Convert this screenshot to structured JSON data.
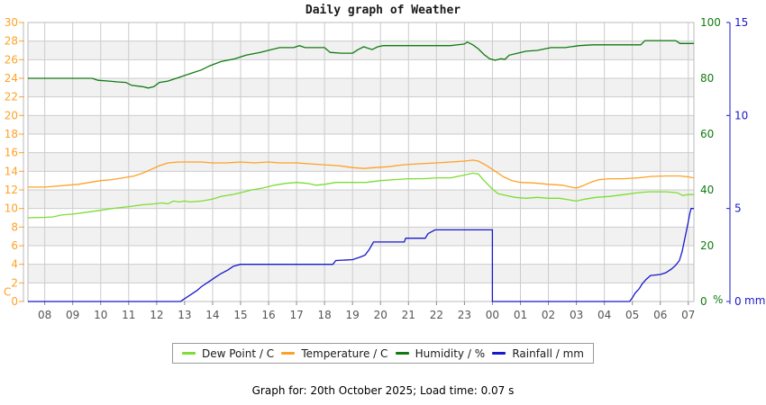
{
  "page": {
    "title": "Daily graph of Weather",
    "footer": "Graph for: 20th October 2025; Load time: 0.07 s"
  },
  "chart_data": {
    "type": "line",
    "title": "Daily graph of Weather",
    "x_axis": {
      "tick_labels": [
        "08",
        "09",
        "10",
        "11",
        "12",
        "13",
        "14",
        "15",
        "16",
        "17",
        "18",
        "19",
        "20",
        "21",
        "22",
        "23",
        "00",
        "01",
        "02",
        "03",
        "04",
        "05",
        "06",
        "07"
      ],
      "start_hour": 8,
      "range": [
        7.4,
        31.2
      ],
      "grid": true,
      "tick_label_color": "#555555"
    },
    "y_axis_left": {
      "label": "C",
      "min": 0,
      "max": 30,
      "step": 2,
      "color": "#FFA125"
    },
    "y_axis_right_humidity": {
      "label": "%",
      "min": 0,
      "max": 100,
      "step": 20,
      "color": "#117A11"
    },
    "y_axis_right_rain": {
      "label": "mm",
      "min": 0,
      "max": 15,
      "step": 5,
      "color": "#1818CC"
    },
    "grid_color": "#CCCCCC",
    "band_color": "#F1F1F1",
    "border_color": "#BBBBBB",
    "legend_position": "bottom",
    "series": [
      {
        "name": "Dew Point / C",
        "axis": "left",
        "color": "#7CDE30",
        "points": [
          [
            7.4,
            9.0
          ],
          [
            8.0,
            9.05
          ],
          [
            8.3,
            9.1
          ],
          [
            8.6,
            9.3
          ],
          [
            9.0,
            9.4
          ],
          [
            9.5,
            9.6
          ],
          [
            10.0,
            9.8
          ],
          [
            10.4,
            10.0
          ],
          [
            11.0,
            10.2
          ],
          [
            11.5,
            10.4
          ],
          [
            11.9,
            10.5
          ],
          [
            12.2,
            10.6
          ],
          [
            12.4,
            10.5
          ],
          [
            12.6,
            10.8
          ],
          [
            12.8,
            10.7
          ],
          [
            13.0,
            10.8
          ],
          [
            13.2,
            10.7
          ],
          [
            13.6,
            10.8
          ],
          [
            14.0,
            11.0
          ],
          [
            14.3,
            11.3
          ],
          [
            14.7,
            11.5
          ],
          [
            15.0,
            11.7
          ],
          [
            15.4,
            12.0
          ],
          [
            15.8,
            12.2
          ],
          [
            16.2,
            12.5
          ],
          [
            16.6,
            12.7
          ],
          [
            17.0,
            12.8
          ],
          [
            17.4,
            12.7
          ],
          [
            17.7,
            12.5
          ],
          [
            18.0,
            12.6
          ],
          [
            18.4,
            12.8
          ],
          [
            19.0,
            12.8
          ],
          [
            19.5,
            12.8
          ],
          [
            20.0,
            13.0
          ],
          [
            20.5,
            13.1
          ],
          [
            21.0,
            13.2
          ],
          [
            21.5,
            13.2
          ],
          [
            22.0,
            13.3
          ],
          [
            22.5,
            13.3
          ],
          [
            23.0,
            13.6
          ],
          [
            23.3,
            13.8
          ],
          [
            23.5,
            13.7
          ],
          [
            23.7,
            13.0
          ],
          [
            24.0,
            12.1
          ],
          [
            24.2,
            11.6
          ],
          [
            24.5,
            11.4
          ],
          [
            24.8,
            11.2
          ],
          [
            25.2,
            11.1
          ],
          [
            25.6,
            11.2
          ],
          [
            26.0,
            11.1
          ],
          [
            26.4,
            11.1
          ],
          [
            26.8,
            10.9
          ],
          [
            27.0,
            10.8
          ],
          [
            27.3,
            11.0
          ],
          [
            27.7,
            11.2
          ],
          [
            28.2,
            11.3
          ],
          [
            28.7,
            11.5
          ],
          [
            29.2,
            11.7
          ],
          [
            29.6,
            11.8
          ],
          [
            30.2,
            11.8
          ],
          [
            30.6,
            11.7
          ],
          [
            30.8,
            11.4
          ],
          [
            31.0,
            11.5
          ],
          [
            31.2,
            11.5
          ]
        ]
      },
      {
        "name": "Temperature / C",
        "axis": "left",
        "color": "#FFA125",
        "points": [
          [
            7.4,
            12.3
          ],
          [
            8.0,
            12.3
          ],
          [
            8.4,
            12.4
          ],
          [
            8.8,
            12.5
          ],
          [
            9.2,
            12.6
          ],
          [
            9.6,
            12.8
          ],
          [
            10.0,
            13.0
          ],
          [
            10.4,
            13.1
          ],
          [
            10.8,
            13.3
          ],
          [
            11.2,
            13.5
          ],
          [
            11.5,
            13.8
          ],
          [
            11.8,
            14.2
          ],
          [
            12.1,
            14.6
          ],
          [
            12.4,
            14.9
          ],
          [
            12.8,
            15.0
          ],
          [
            13.2,
            15.0
          ],
          [
            13.6,
            15.0
          ],
          [
            14.0,
            14.9
          ],
          [
            14.5,
            14.9
          ],
          [
            15.0,
            15.0
          ],
          [
            15.5,
            14.9
          ],
          [
            16.0,
            15.0
          ],
          [
            16.4,
            14.9
          ],
          [
            17.0,
            14.9
          ],
          [
            17.5,
            14.8
          ],
          [
            18.0,
            14.7
          ],
          [
            18.5,
            14.6
          ],
          [
            19.0,
            14.4
          ],
          [
            19.4,
            14.3
          ],
          [
            19.8,
            14.4
          ],
          [
            20.3,
            14.5
          ],
          [
            20.8,
            14.7
          ],
          [
            21.3,
            14.8
          ],
          [
            22.0,
            14.9
          ],
          [
            22.5,
            15.0
          ],
          [
            23.0,
            15.1
          ],
          [
            23.3,
            15.2
          ],
          [
            23.5,
            15.1
          ],
          [
            23.8,
            14.6
          ],
          [
            24.1,
            14.0
          ],
          [
            24.4,
            13.4
          ],
          [
            24.7,
            13.0
          ],
          [
            25.0,
            12.8
          ],
          [
            25.5,
            12.75
          ],
          [
            26.0,
            12.6
          ],
          [
            26.5,
            12.5
          ],
          [
            26.8,
            12.3
          ],
          [
            27.0,
            12.2
          ],
          [
            27.2,
            12.4
          ],
          [
            27.5,
            12.8
          ],
          [
            27.8,
            13.1
          ],
          [
            28.2,
            13.2
          ],
          [
            28.7,
            13.2
          ],
          [
            29.2,
            13.3
          ],
          [
            29.7,
            13.45
          ],
          [
            30.2,
            13.5
          ],
          [
            30.7,
            13.5
          ],
          [
            31.0,
            13.4
          ],
          [
            31.2,
            13.3
          ]
        ]
      },
      {
        "name": "Humidity / %",
        "axis": "humidity",
        "color": "#117A11",
        "points": [
          [
            7.4,
            80
          ],
          [
            9.0,
            80
          ],
          [
            9.7,
            80
          ],
          [
            9.9,
            79.3
          ],
          [
            10.3,
            79
          ],
          [
            10.6,
            78.7
          ],
          [
            10.9,
            78.5
          ],
          [
            11.1,
            77.5
          ],
          [
            11.5,
            77
          ],
          [
            11.7,
            76.5
          ],
          [
            11.9,
            77
          ],
          [
            12.1,
            78.5
          ],
          [
            12.4,
            79
          ],
          [
            12.7,
            80
          ],
          [
            13.0,
            81
          ],
          [
            13.3,
            82
          ],
          [
            13.6,
            83
          ],
          [
            13.9,
            84.5
          ],
          [
            14.3,
            86
          ],
          [
            14.8,
            87
          ],
          [
            15.2,
            88.3
          ],
          [
            15.7,
            89.3
          ],
          [
            16.1,
            90.3
          ],
          [
            16.4,
            91
          ],
          [
            16.9,
            91
          ],
          [
            17.1,
            91.7
          ],
          [
            17.3,
            91
          ],
          [
            18.0,
            91
          ],
          [
            18.2,
            89.3
          ],
          [
            18.6,
            89
          ],
          [
            19.0,
            89
          ],
          [
            19.2,
            90.3
          ],
          [
            19.4,
            91.3
          ],
          [
            19.7,
            90.3
          ],
          [
            19.9,
            91.3
          ],
          [
            20.1,
            91.7
          ],
          [
            20.5,
            91.7
          ],
          [
            21.0,
            91.7
          ],
          [
            21.5,
            91.7
          ],
          [
            22.0,
            91.7
          ],
          [
            22.5,
            91.7
          ],
          [
            23.0,
            92.3
          ],
          [
            23.1,
            93
          ],
          [
            23.3,
            92
          ],
          [
            23.5,
            90.5
          ],
          [
            23.7,
            88.5
          ],
          [
            23.9,
            87
          ],
          [
            24.1,
            86.5
          ],
          [
            24.3,
            87
          ],
          [
            24.45,
            86.8
          ],
          [
            24.6,
            88.3
          ],
          [
            24.9,
            89
          ],
          [
            25.2,
            89.7
          ],
          [
            25.6,
            90
          ],
          [
            26.1,
            91
          ],
          [
            26.6,
            91
          ],
          [
            27.1,
            91.7
          ],
          [
            27.6,
            92
          ],
          [
            28.2,
            92
          ],
          [
            28.8,
            92
          ],
          [
            29.3,
            92
          ],
          [
            29.45,
            93.5
          ],
          [
            30.0,
            93.5
          ],
          [
            30.55,
            93.5
          ],
          [
            30.7,
            92.5
          ],
          [
            31.0,
            92.5
          ],
          [
            31.2,
            92.5
          ]
        ]
      },
      {
        "name": "Rainfall / mm",
        "axis": "rain",
        "color": "#1818CC",
        "points": [
          [
            7.4,
            0
          ],
          [
            12.85,
            0
          ],
          [
            12.95,
            0.1
          ],
          [
            13.15,
            0.3
          ],
          [
            13.3,
            0.45
          ],
          [
            13.45,
            0.6
          ],
          [
            13.6,
            0.8
          ],
          [
            13.85,
            1.05
          ],
          [
            14.1,
            1.3
          ],
          [
            14.3,
            1.5
          ],
          [
            14.55,
            1.7
          ],
          [
            14.75,
            1.9
          ],
          [
            15.0,
            2.0
          ],
          [
            18.3,
            2.0
          ],
          [
            18.4,
            2.2
          ],
          [
            19.0,
            2.25
          ],
          [
            19.3,
            2.4
          ],
          [
            19.45,
            2.5
          ],
          [
            19.6,
            2.8
          ],
          [
            19.75,
            3.2
          ],
          [
            20.85,
            3.2
          ],
          [
            20.9,
            3.4
          ],
          [
            21.6,
            3.4
          ],
          [
            21.7,
            3.65
          ],
          [
            21.95,
            3.85
          ],
          [
            24.0,
            3.85
          ],
          [
            24.0,
            0
          ],
          [
            28.9,
            0
          ],
          [
            29.0,
            0.2
          ],
          [
            29.1,
            0.45
          ],
          [
            29.25,
            0.7
          ],
          [
            29.35,
            0.95
          ],
          [
            29.5,
            1.2
          ],
          [
            29.65,
            1.4
          ],
          [
            30.0,
            1.45
          ],
          [
            30.2,
            1.55
          ],
          [
            30.4,
            1.75
          ],
          [
            30.55,
            1.95
          ],
          [
            30.68,
            2.2
          ],
          [
            30.78,
            2.7
          ],
          [
            30.85,
            3.2
          ],
          [
            30.92,
            3.7
          ],
          [
            31.0,
            4.3
          ],
          [
            31.05,
            4.7
          ],
          [
            31.1,
            5.0
          ],
          [
            31.2,
            5.0
          ]
        ]
      }
    ]
  }
}
